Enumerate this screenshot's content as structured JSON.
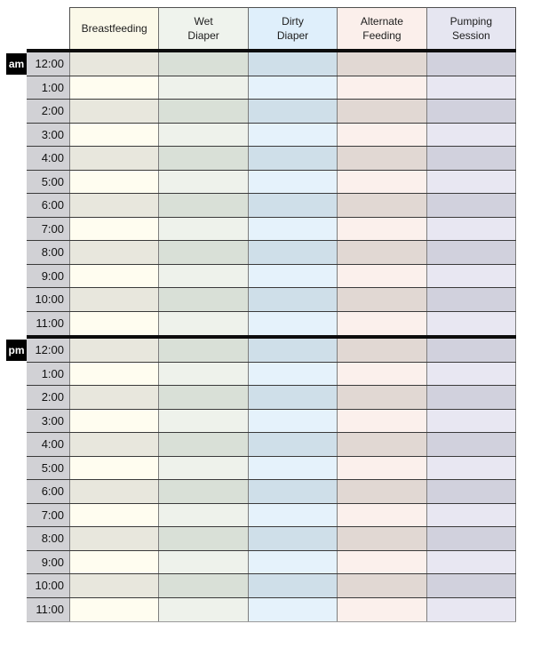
{
  "table": {
    "columns": [
      {
        "id": "breastfeeding",
        "label": "Breastfeeding",
        "label_lines": [
          "Breastfeeding"
        ],
        "header_bg": "#fbf9e9",
        "light_bg": "#fffdf0",
        "dark_bg": "#e8e7dd"
      },
      {
        "id": "wet-diaper",
        "label": "Wet Diaper",
        "label_lines": [
          "Wet",
          "Diaper"
        ],
        "header_bg": "#eff3ed",
        "light_bg": "#eef2eb",
        "dark_bg": "#d9e0d7"
      },
      {
        "id": "dirty-diaper",
        "label": "Dirty Diaper",
        "label_lines": [
          "Dirty",
          "Diaper"
        ],
        "header_bg": "#dfeffb",
        "light_bg": "#e5f2fb",
        "dark_bg": "#cfdfe9"
      },
      {
        "id": "alternate-feeding",
        "label": "Alternate Feeding",
        "label_lines": [
          "Alternate",
          "Feeding"
        ],
        "header_bg": "#fbefeb",
        "light_bg": "#fbf0ec",
        "dark_bg": "#e1d8d3"
      },
      {
        "id": "pumping-session",
        "label": "Pumping Session",
        "label_lines": [
          "Pumping",
          "Session"
        ],
        "header_bg": "#e6e6f1",
        "light_bg": "#e8e7f2",
        "dark_bg": "#d1d1dd"
      }
    ],
    "sections": [
      {
        "badge": "am",
        "times": [
          "12:00",
          "1:00",
          "2:00",
          "3:00",
          "4:00",
          "5:00",
          "6:00",
          "7:00",
          "8:00",
          "9:00",
          "10:00",
          "11:00"
        ]
      },
      {
        "badge": "pm",
        "times": [
          "12:00",
          "1:00",
          "2:00",
          "3:00",
          "4:00",
          "5:00",
          "6:00",
          "7:00",
          "8:00",
          "9:00",
          "10:00",
          "11:00"
        ]
      }
    ]
  },
  "colors": {
    "time_column_bg": "#d1d1d5",
    "badge_bg": "#000000",
    "badge_text": "#ffffff",
    "section_divider": "#0c0c0c",
    "row_border": "#3a3a3a",
    "column_border": "#7e7e7e"
  }
}
